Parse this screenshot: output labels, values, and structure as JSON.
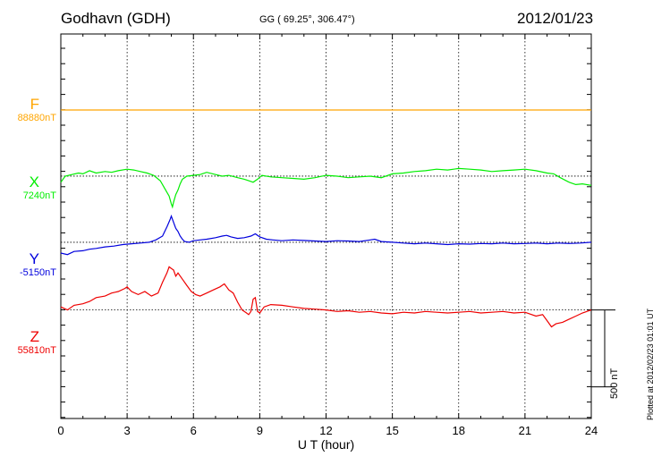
{
  "header": {
    "station": "Godhavn (GDH)",
    "coords": "GG ( 69.25°, 306.47°)",
    "date": "2012/01/23",
    "plotted": "Plotted at 2012/02/23 01:01 UT"
  },
  "chart_data": {
    "type": "line",
    "xlabel": "U T (hour)",
    "xlim": [
      0,
      24
    ],
    "xticks": [
      0,
      3,
      6,
      9,
      12,
      15,
      18,
      21,
      24
    ],
    "xtick_labels": [
      "0",
      "3",
      "6",
      "9",
      "12",
      "15",
      "18",
      "21",
      "24"
    ],
    "ylim_nT": [
      -1600,
      1000
    ],
    "grid": true,
    "scale_bar": {
      "label": "500 nT",
      "value_nT": 500
    },
    "series": [
      {
        "name": "F",
        "baseline_label": "88880nT",
        "baseline_nT": 88880,
        "color": "#ffa500",
        "offset_nT": 0,
        "x": [
          0,
          24
        ],
        "y": [
          0,
          0
        ]
      },
      {
        "name": "X",
        "baseline_label": "7240nT",
        "baseline_nT": 7240,
        "color": "#00ee00",
        "offset_nT": -430,
        "x": [
          0,
          0.2,
          0.5,
          0.8,
          1.0,
          1.3,
          1.6,
          2.0,
          2.3,
          2.6,
          3.0,
          3.3,
          3.6,
          3.9,
          4.2,
          4.5,
          4.7,
          4.9,
          5.0,
          5.05,
          5.1,
          5.2,
          5.3,
          5.4,
          5.5,
          5.6,
          5.7,
          6.0,
          6.3,
          6.6,
          7.0,
          7.3,
          7.6,
          8.0,
          8.3,
          8.5,
          8.7,
          8.9,
          9.1,
          9.5,
          10,
          10.5,
          11,
          11.5,
          12,
          12.5,
          13,
          13.5,
          14,
          14.5,
          15,
          15.5,
          16,
          16.5,
          17,
          17.5,
          18,
          18.5,
          19,
          19.5,
          20,
          20.5,
          21,
          21.5,
          22,
          22.3,
          22.6,
          23,
          23.3,
          23.6,
          24
        ],
        "y": [
          -40,
          0,
          10,
          20,
          15,
          35,
          20,
          30,
          25,
          35,
          45,
          40,
          30,
          20,
          5,
          -30,
          -80,
          -130,
          -180,
          -200,
          -170,
          -120,
          -90,
          -50,
          -20,
          -10,
          0,
          5,
          10,
          25,
          10,
          0,
          5,
          -10,
          -20,
          -30,
          -40,
          -20,
          5,
          -5,
          -10,
          -15,
          -20,
          -10,
          5,
          0,
          -10,
          -5,
          0,
          -10,
          15,
          20,
          30,
          35,
          45,
          40,
          50,
          45,
          40,
          30,
          35,
          40,
          45,
          35,
          20,
          15,
          -10,
          -40,
          -55,
          -50,
          -60
        ]
      },
      {
        "name": "Y",
        "baseline_label": "-5150nT",
        "baseline_nT": -5150,
        "color": "#0000dd",
        "offset_nT": -860,
        "x": [
          0,
          0.3,
          0.6,
          1.0,
          1.3,
          1.6,
          2.0,
          2.4,
          2.8,
          3.2,
          3.6,
          4.0,
          4.3,
          4.6,
          4.8,
          4.95,
          5.0,
          5.1,
          5.2,
          5.3,
          5.4,
          5.5,
          5.6,
          5.8,
          6.0,
          6.3,
          6.6,
          7.0,
          7.3,
          7.5,
          7.7,
          8.0,
          8.3,
          8.6,
          8.8,
          9.0,
          9.3,
          9.6,
          10,
          10.5,
          11,
          11.5,
          12,
          12.5,
          13,
          13.5,
          14,
          14.2,
          14.5,
          15,
          15.5,
          16,
          16.5,
          17,
          17.5,
          18,
          18.5,
          19,
          19.5,
          20,
          20.5,
          21,
          21.5,
          22,
          22.5,
          23,
          23.5,
          24
        ],
        "y": [
          -70,
          -80,
          -60,
          -55,
          -45,
          -40,
          -30,
          -25,
          -15,
          -10,
          -5,
          0,
          15,
          40,
          100,
          150,
          170,
          130,
          90,
          70,
          40,
          20,
          5,
          0,
          10,
          15,
          20,
          30,
          40,
          45,
          35,
          25,
          30,
          40,
          55,
          35,
          20,
          15,
          10,
          15,
          12,
          8,
          5,
          10,
          8,
          5,
          15,
          20,
          5,
          0,
          -5,
          -10,
          -5,
          -10,
          -15,
          -10,
          -12,
          -8,
          -10,
          -5,
          -10,
          -8,
          -5,
          -10,
          -5,
          -8,
          -5,
          0
        ]
      },
      {
        "name": "Z",
        "baseline_label": "55810nT",
        "baseline_nT": 55810,
        "color": "#ee0000",
        "offset_nT": -1300,
        "x": [
          0,
          0.3,
          0.6,
          1.0,
          1.3,
          1.6,
          2.0,
          2.3,
          2.6,
          2.9,
          3.0,
          3.2,
          3.5,
          3.8,
          4.1,
          4.4,
          4.6,
          4.8,
          4.9,
          5.0,
          5.1,
          5.2,
          5.3,
          5.5,
          5.7,
          5.9,
          6.1,
          6.3,
          6.6,
          6.9,
          7.2,
          7.4,
          7.6,
          7.8,
          8.0,
          8.2,
          8.4,
          8.5,
          8.6,
          8.7,
          8.8,
          8.9,
          9.0,
          9.2,
          9.5,
          10,
          10.5,
          11,
          11.5,
          12,
          12.5,
          13,
          13.5,
          14,
          14.5,
          15,
          15.5,
          16,
          16.5,
          17,
          17.5,
          18,
          18.5,
          19,
          19.5,
          20,
          20.5,
          21,
          21.5,
          21.8,
          22.0,
          22.2,
          22.4,
          22.7,
          23,
          23.3,
          23.6,
          24
        ],
        "y": [
          20,
          0,
          30,
          40,
          55,
          80,
          90,
          110,
          120,
          140,
          150,
          120,
          100,
          120,
          90,
          110,
          180,
          240,
          280,
          270,
          260,
          220,
          240,
          200,
          160,
          120,
          100,
          90,
          110,
          130,
          150,
          170,
          130,
          110,
          50,
          0,
          -20,
          -30,
          -10,
          70,
          80,
          -10,
          -20,
          20,
          35,
          30,
          20,
          10,
          5,
          0,
          -10,
          -5,
          -15,
          -10,
          -20,
          -25,
          -15,
          -20,
          -10,
          -15,
          -20,
          -15,
          -10,
          -20,
          -15,
          -10,
          -20,
          -15,
          -40,
          -30,
          -70,
          -110,
          -90,
          -80,
          -60,
          -40,
          -20,
          0
        ]
      }
    ]
  }
}
